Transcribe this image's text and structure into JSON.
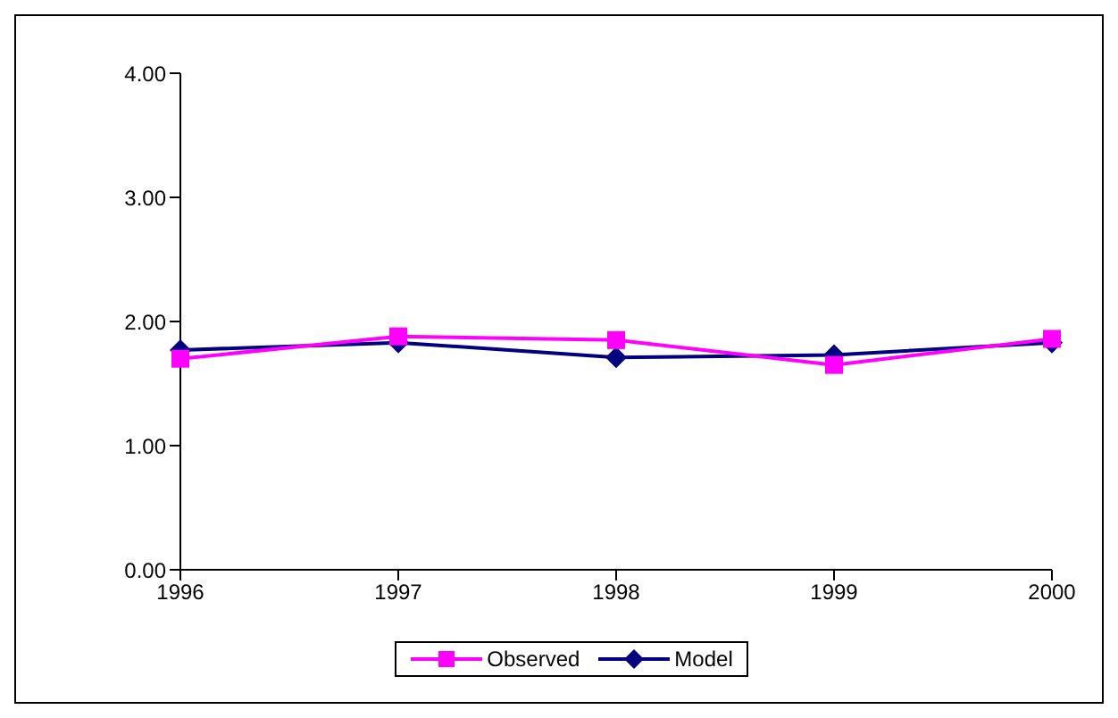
{
  "chart_data": {
    "type": "line",
    "categories": [
      "1996",
      "1997",
      "1998",
      "1999",
      "2000"
    ],
    "series": [
      {
        "name": "Observed",
        "color": "#ff00ff",
        "marker": "square",
        "values": [
          1.7,
          1.88,
          1.85,
          1.65,
          1.86
        ]
      },
      {
        "name": "Model",
        "color": "#000080",
        "marker": "diamond",
        "values": [
          1.77,
          1.83,
          1.71,
          1.73,
          1.83
        ]
      }
    ],
    "ylim": [
      0,
      4
    ],
    "yticks": [
      {
        "value": 0,
        "label": "0.00"
      },
      {
        "value": 1,
        "label": "1.00"
      },
      {
        "value": 2,
        "label": "2.00"
      },
      {
        "value": 3,
        "label": "3.00"
      },
      {
        "value": 4,
        "label": "4.00"
      }
    ],
    "grid": false,
    "legend": "bottom"
  }
}
